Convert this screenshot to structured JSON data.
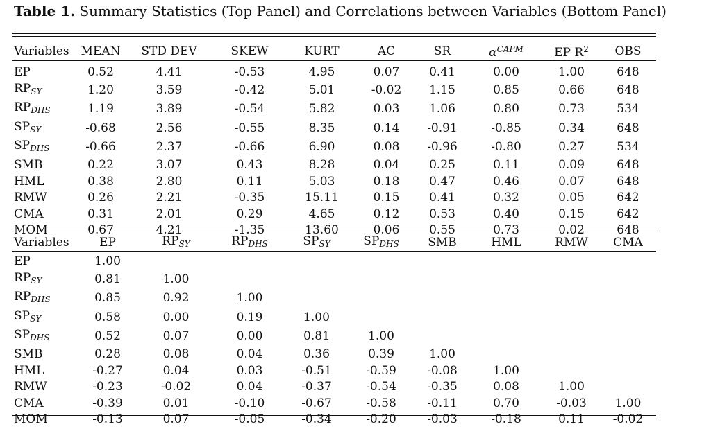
{
  "caption": {
    "label": "Table 1.",
    "text": "Summary Statistics (Top Panel) and Correlations between Variables (Bottom Panel)"
  },
  "top_panel": {
    "headers": [
      "Variables",
      "MEAN",
      "STD DEV",
      "SKEW",
      "KURT",
      "AC",
      "SR",
      "α",
      "EP R",
      "OBS"
    ],
    "alpha_superscript": "CAPM",
    "epr_superscript": "2",
    "rows": [
      {
        "var": "EP",
        "sub": "",
        "cells": [
          "0.52",
          "4.41",
          "-0.53",
          "4.95",
          "0.07",
          "0.41",
          "0.00",
          "1.00",
          "648"
        ]
      },
      {
        "var": "RP",
        "sub": "SY",
        "cells": [
          "1.20",
          "3.59",
          "-0.42",
          "5.01",
          "-0.02",
          "1.15",
          "0.85",
          "0.66",
          "648"
        ]
      },
      {
        "var": "RP",
        "sub": "DHS",
        "cells": [
          "1.19",
          "3.89",
          "-0.54",
          "5.82",
          "0.03",
          "1.06",
          "0.80",
          "0.73",
          "534"
        ]
      },
      {
        "var": "SP",
        "sub": "SY",
        "cells": [
          "-0.68",
          "2.56",
          "-0.55",
          "8.35",
          "0.14",
          "-0.91",
          "-0.85",
          "0.34",
          "648"
        ]
      },
      {
        "var": "SP",
        "sub": "DHS",
        "cells": [
          "-0.66",
          "2.37",
          "-0.66",
          "6.90",
          "0.08",
          "-0.96",
          "-0.80",
          "0.27",
          "534"
        ]
      },
      {
        "var": "SMB",
        "sub": "",
        "cells": [
          "0.22",
          "3.07",
          "0.43",
          "8.28",
          "0.04",
          "0.25",
          "0.11",
          "0.09",
          "648"
        ]
      },
      {
        "var": "HML",
        "sub": "",
        "cells": [
          "0.38",
          "2.80",
          "0.11",
          "5.03",
          "0.18",
          "0.47",
          "0.46",
          "0.07",
          "648"
        ]
      },
      {
        "var": "RMW",
        "sub": "",
        "cells": [
          "0.26",
          "2.21",
          "-0.35",
          "15.11",
          "0.15",
          "0.41",
          "0.32",
          "0.05",
          "642"
        ]
      },
      {
        "var": "CMA",
        "sub": "",
        "cells": [
          "0.31",
          "2.01",
          "0.29",
          "4.65",
          "0.12",
          "0.53",
          "0.40",
          "0.15",
          "642"
        ]
      },
      {
        "var": "MOM",
        "sub": "",
        "cells": [
          "0.67",
          "4.21",
          "-1.35",
          "13.60",
          "0.06",
          "0.55",
          "0.73",
          "0.02",
          "648"
        ]
      }
    ]
  },
  "bottom_panel": {
    "headers": [
      {
        "var": "Variables",
        "sub": ""
      },
      {
        "var": "EP",
        "sub": ""
      },
      {
        "var": "RP",
        "sub": "SY"
      },
      {
        "var": "RP",
        "sub": "DHS"
      },
      {
        "var": "SP",
        "sub": "SY"
      },
      {
        "var": "SP",
        "sub": "DHS"
      },
      {
        "var": "SMB",
        "sub": ""
      },
      {
        "var": "HML",
        "sub": ""
      },
      {
        "var": "RMW",
        "sub": ""
      },
      {
        "var": "CMA",
        "sub": ""
      }
    ],
    "rows": [
      {
        "var": "EP",
        "sub": "",
        "cells": [
          "1.00",
          "",
          "",
          "",
          "",
          "",
          "",
          "",
          ""
        ]
      },
      {
        "var": "RP",
        "sub": "SY",
        "cells": [
          "0.81",
          "1.00",
          "",
          "",
          "",
          "",
          "",
          "",
          ""
        ]
      },
      {
        "var": "RP",
        "sub": "DHS",
        "cells": [
          "0.85",
          "0.92",
          "1.00",
          "",
          "",
          "",
          "",
          "",
          ""
        ]
      },
      {
        "var": "SP",
        "sub": "SY",
        "cells": [
          "0.58",
          "0.00",
          "0.19",
          "1.00",
          "",
          "",
          "",
          "",
          ""
        ]
      },
      {
        "var": "SP",
        "sub": "DHS",
        "cells": [
          "0.52",
          "0.07",
          "0.00",
          "0.81",
          "1.00",
          "",
          "",
          "",
          ""
        ]
      },
      {
        "var": "SMB",
        "sub": "",
        "cells": [
          "0.28",
          "0.08",
          "0.04",
          "0.36",
          "0.39",
          "1.00",
          "",
          "",
          ""
        ]
      },
      {
        "var": "HML",
        "sub": "",
        "cells": [
          "-0.27",
          "0.04",
          "0.03",
          "-0.51",
          "-0.59",
          "-0.08",
          "1.00",
          "",
          ""
        ]
      },
      {
        "var": "RMW",
        "sub": "",
        "cells": [
          "-0.23",
          "-0.02",
          "0.04",
          "-0.37",
          "-0.54",
          "-0.35",
          "0.08",
          "1.00",
          ""
        ]
      },
      {
        "var": "CMA",
        "sub": "",
        "cells": [
          "-0.39",
          "0.01",
          "-0.10",
          "-0.67",
          "-0.58",
          "-0.11",
          "0.70",
          "-0.03",
          "1.00"
        ]
      },
      {
        "var": "MOM",
        "sub": "",
        "cells": [
          "-0.13",
          "0.07",
          "-0.05",
          "-0.34",
          "-0.20",
          "-0.03",
          "-0.18",
          "0.11",
          "-0.02"
        ]
      }
    ]
  }
}
